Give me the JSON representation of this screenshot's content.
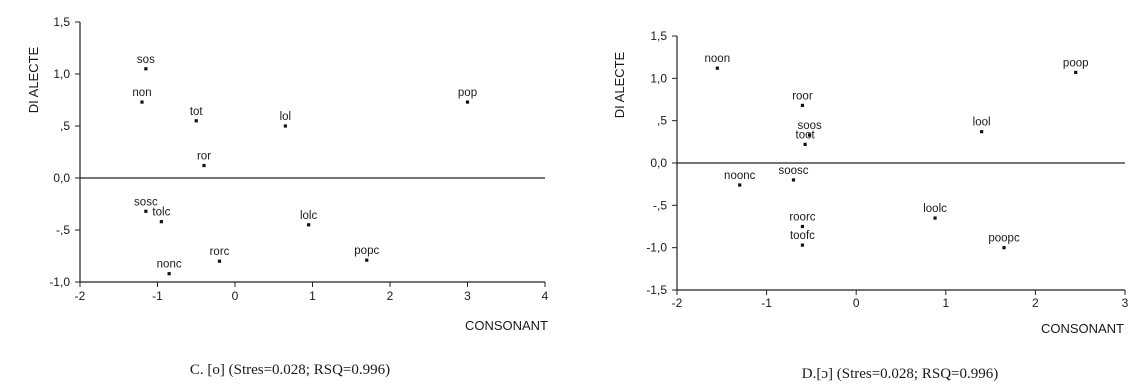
{
  "chart_data": [
    {
      "type": "scatter",
      "caption": "C. [o] (Stres=0.028; RSQ=0.996)",
      "xlabel": "CONSONANT",
      "ylabel": "DI ALECTE",
      "xlim": [
        -2,
        4
      ],
      "ylim": [
        -1.0,
        1.5
      ],
      "xticks": [
        -2,
        -1,
        0,
        1,
        2,
        3,
        4
      ],
      "xtick_labels": [
        "-2",
        "-1",
        "0",
        "1",
        "2",
        "3",
        "4"
      ],
      "yticks": [
        1.5,
        1.0,
        0.5,
        0.0,
        -0.5,
        -1.0
      ],
      "ytick_labels": [
        "1,5",
        "1,0",
        ",5",
        "0,0",
        "-,5",
        "-1,0"
      ],
      "zero_line": true,
      "points": [
        {
          "label": "sos",
          "x": -1.15,
          "y": 1.05
        },
        {
          "label": "non",
          "x": -1.2,
          "y": 0.73
        },
        {
          "label": "tot",
          "x": -0.5,
          "y": 0.55
        },
        {
          "label": "lol",
          "x": 0.65,
          "y": 0.5
        },
        {
          "label": "pop",
          "x": 3.0,
          "y": 0.73
        },
        {
          "label": "ror",
          "x": -0.4,
          "y": 0.12
        },
        {
          "label": "sosc",
          "x": -1.15,
          "y": -0.32
        },
        {
          "label": "tolc",
          "x": -0.95,
          "y": -0.42
        },
        {
          "label": "lolc",
          "x": 0.95,
          "y": -0.45
        },
        {
          "label": "rorc",
          "x": -0.2,
          "y": -0.8
        },
        {
          "label": "popc",
          "x": 1.7,
          "y": -0.79
        },
        {
          "label": "nonc",
          "x": -0.85,
          "y": -0.92
        }
      ]
    },
    {
      "type": "scatter",
      "caption": "D.[ɔ] (Stres=0.028; RSQ=0.996)",
      "xlabel": "CONSONANT",
      "ylabel": "DI ALECTE",
      "xlim": [
        -2,
        3
      ],
      "ylim": [
        -1.5,
        1.5
      ],
      "xticks": [
        -2,
        -1,
        0,
        1,
        2,
        3
      ],
      "xtick_labels": [
        "-2",
        "-1",
        "0",
        "1",
        "2",
        "3"
      ],
      "yticks": [
        1.5,
        1.0,
        0.5,
        0.0,
        -0.5,
        -1.0,
        -1.5
      ],
      "ytick_labels": [
        "1,5",
        "1,0",
        ",5",
        "0,0",
        "-,5",
        "-1,0",
        "-1,5"
      ],
      "zero_line": true,
      "points": [
        {
          "label": "noon",
          "x": -1.55,
          "y": 1.12
        },
        {
          "label": "poop",
          "x": 2.45,
          "y": 1.07
        },
        {
          "label": "roor",
          "x": -0.6,
          "y": 0.68
        },
        {
          "label": "lool",
          "x": 1.4,
          "y": 0.37
        },
        {
          "label": "soos",
          "x": -0.52,
          "y": 0.33
        },
        {
          "label": "toot",
          "x": -0.57,
          "y": 0.22
        },
        {
          "label": "soosc",
          "x": -0.7,
          "y": -0.2
        },
        {
          "label": "noonc",
          "x": -1.3,
          "y": -0.26
        },
        {
          "label": "loolc",
          "x": 0.88,
          "y": -0.65
        },
        {
          "label": "roorc",
          "x": -0.6,
          "y": -0.75
        },
        {
          "label": "toofc",
          "x": -0.6,
          "y": -0.97
        },
        {
          "label": "poopc",
          "x": 1.65,
          "y": -1.0
        }
      ]
    }
  ]
}
